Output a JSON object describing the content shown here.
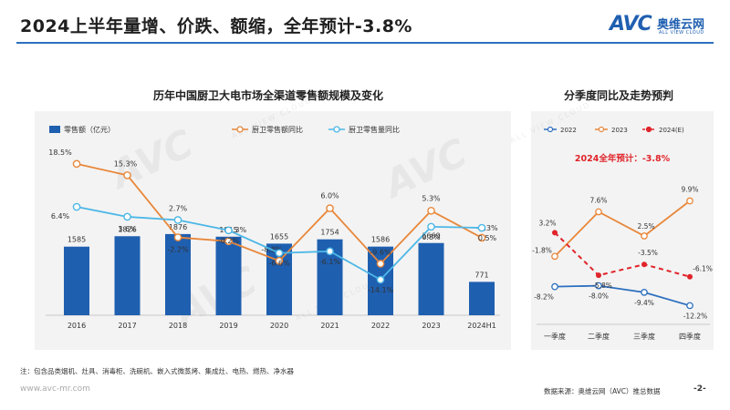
{
  "header": {
    "title": "2024上半年量增、价跌、额缩，全年预计-3.8%",
    "logo_word": "AVC",
    "logo_cn": "奥维云网",
    "logo_en": "ALL VIEW CLOUD"
  },
  "colors": {
    "bar": "#1f5fb0",
    "value_yoy": "#e8873a",
    "volume_yoy": "#4cb7e6",
    "q2022": "#2c6fbf",
    "q2023": "#e8873a",
    "q2024": "#e0242a",
    "highlight": "#e0242a"
  },
  "chart_data": [
    {
      "type": "bar",
      "title": "历年中国厨卫大电市场全渠道零售额规模及变化",
      "categories": [
        "2016",
        "2017",
        "2018",
        "2019",
        "2020",
        "2021",
        "2022",
        "2023",
        "2024H1"
      ],
      "series": [
        {
          "name": "零售额（亿元）",
          "type": "bar",
          "values": [
            1585,
            1826,
            1876,
            1815,
            1655,
            1754,
            1586,
            1669,
            771
          ]
        },
        {
          "name": "厨卫零售额同比",
          "type": "line",
          "values": [
            18.5,
            15.3,
            -2.2,
            -3.3,
            -8.8,
            6.0,
            -9.6,
            5.3,
            -2.3
          ]
        },
        {
          "name": "厨卫零售量同比",
          "type": "line",
          "values": [
            6.4,
            3.6,
            2.7,
            -0.2,
            -6.6,
            -6.1,
            -14.1,
            0.8,
            0.5
          ]
        }
      ],
      "value_labels": [
        "1585",
        "1826",
        "1876",
        "1815",
        "1655",
        "1754",
        "1586",
        "1669",
        "771"
      ],
      "value_yoy_labels": [
        "18.5%",
        "15.3%",
        "-2.2%",
        "-3.3%",
        "-8.8%",
        "6.0%",
        "-9.6%",
        "5.3%",
        "-2.3%"
      ],
      "volume_yoy_labels": [
        "6.4%",
        "3.6%",
        "2.7%",
        "-0.2%",
        "-6.6%",
        "-6.1%",
        "-14.1%",
        "0.8%",
        "0.5%"
      ],
      "legend_position": "top"
    },
    {
      "type": "line",
      "title": "分季度同比及走势预判",
      "categories": [
        "一季度",
        "二季度",
        "三季度",
        "四季度"
      ],
      "series": [
        {
          "name": "2022",
          "values": [
            -8.2,
            -8.0,
            -9.4,
            -12.2
          ],
          "labels": [
            "-8.2%",
            "-8.0%",
            "-9.4%",
            "-12.2%"
          ]
        },
        {
          "name": "2023",
          "values": [
            -1.8,
            7.6,
            2.5,
            9.9
          ],
          "labels": [
            "-1.8%",
            "7.6%",
            "2.5%",
            "9.9%"
          ]
        },
        {
          "name": "2024(E)",
          "values": [
            3.2,
            -5.8,
            -3.5,
            -6.1
          ],
          "labels": [
            "3.2%",
            "-5.8%",
            "-3.5%",
            "-6.1%"
          ],
          "dashed": true
        }
      ],
      "annotation": "2024全年预计：-3.8%",
      "legend_position": "top"
    }
  ],
  "footer": {
    "note": "注：包含品类烟机、灶具、消毒柜、洗碗机、嵌入式微蒸烤、集成灶、电热、燃热、净水器",
    "website": "www.avc-mr.com",
    "source": "数据来源：奥维云网（AVC）推总数据",
    "page": "-2-"
  },
  "watermark": {
    "cn": "奥维云网",
    "en": "ALL VIEW CLOUD"
  }
}
